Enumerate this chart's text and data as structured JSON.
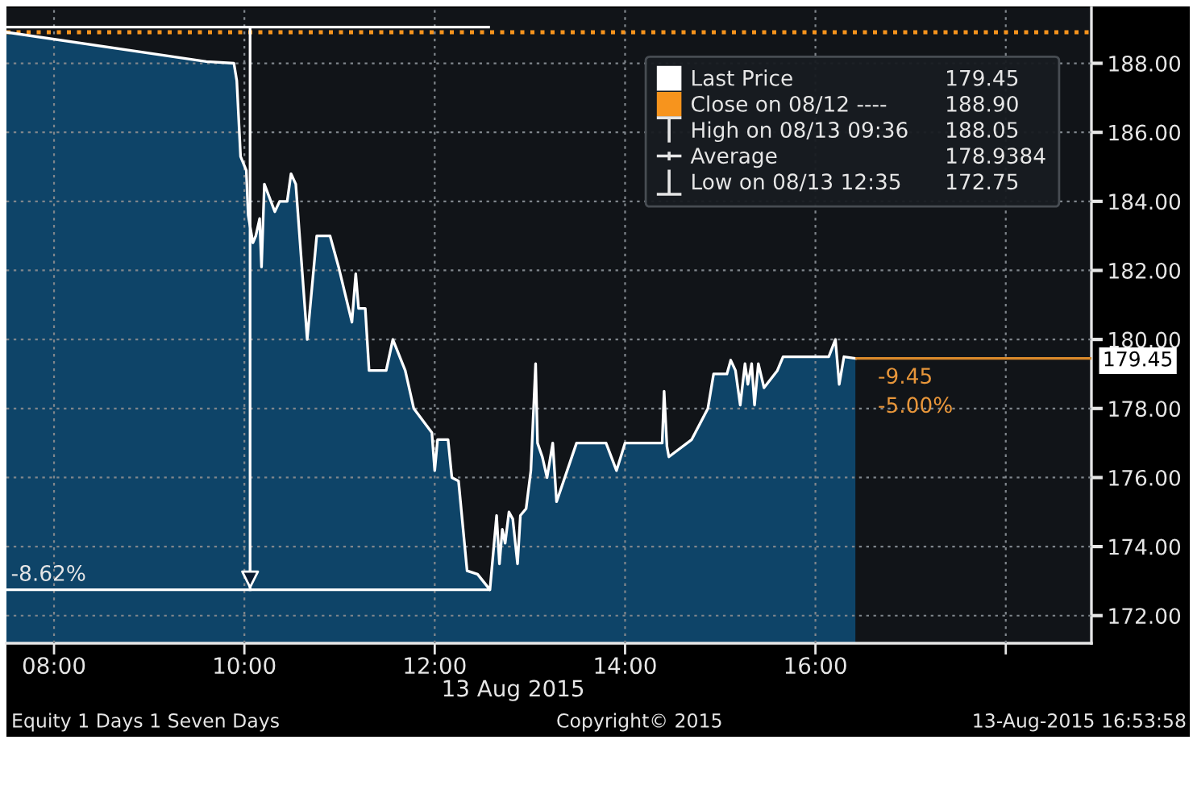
{
  "chart_data": {
    "type": "area",
    "x": [
      7.5,
      9.6,
      9.89,
      9.92,
      9.96,
      10.02,
      10.04,
      10.09,
      10.12,
      10.16,
      10.18,
      10.21,
      10.32,
      10.37,
      10.45,
      10.49,
      10.54,
      10.66,
      10.76,
      10.9,
      10.99,
      11.13,
      11.17,
      11.2,
      11.27,
      11.31,
      11.49,
      11.56,
      11.69,
      11.78,
      11.97,
      12.0,
      12.03,
      12.14,
      12.18,
      12.25,
      12.34,
      12.45,
      12.58,
      12.65,
      12.68,
      12.71,
      12.74,
      12.78,
      12.82,
      12.87,
      12.9,
      12.96,
      13.01,
      13.06,
      13.08,
      13.13,
      13.18,
      13.24,
      13.28,
      13.49,
      13.8,
      13.91,
      14.0,
      14.39,
      14.41,
      14.44,
      14.46,
      14.7,
      14.87,
      14.93,
      15.07,
      15.11,
      15.16,
      15.21,
      15.26,
      15.29,
      15.33,
      15.36,
      15.4,
      15.46,
      15.6,
      15.66,
      16.14,
      16.21,
      16.25,
      16.3,
      16.42
    ],
    "series": [
      {
        "name": "Last Price",
        "color": "#ffffff",
        "values": [
          188.9,
          188.05,
          188.0,
          187.5,
          185.3,
          184.9,
          183.6,
          182.8,
          183.0,
          183.5,
          182.1,
          184.5,
          183.7,
          184.0,
          184.0,
          184.8,
          184.5,
          180.0,
          183.0,
          183.0,
          182.1,
          180.5,
          181.9,
          180.9,
          180.9,
          179.1,
          179.1,
          180.0,
          179.1,
          178.0,
          177.3,
          176.2,
          177.1,
          177.1,
          176.0,
          175.9,
          173.3,
          173.2,
          172.75,
          174.9,
          173.5,
          174.5,
          174.1,
          175.0,
          174.8,
          173.5,
          174.9,
          175.1,
          176.2,
          179.3,
          177.0,
          176.6,
          176.0,
          177.0,
          175.3,
          177.0,
          177.0,
          176.2,
          177.0,
          177.0,
          178.5,
          176.9,
          176.6,
          177.1,
          178.0,
          179.0,
          179.0,
          179.4,
          179.1,
          178.1,
          179.3,
          178.7,
          179.3,
          178.1,
          179.3,
          178.6,
          179.1,
          179.5,
          179.5,
          180.0,
          178.7,
          179.5,
          179.45
        ]
      },
      {
        "type": "line",
        "color": "#ffffff",
        "x": [
          7.5,
          12.58
        ],
        "values": [
          189.05,
          189.05
        ]
      },
      {
        "type": "line",
        "color": "#ffffff",
        "x": [
          7.5,
          12.58
        ],
        "values": [
          172.75,
          172.75
        ]
      },
      {
        "type": "line",
        "color": "#d9892b",
        "x": [
          16.42,
          18.9
        ],
        "values": [
          179.45,
          179.45
        ]
      }
    ],
    "xlim": [
      7.5,
      18.9
    ],
    "xticks": [
      {
        "value": 8,
        "label": "08:00"
      },
      {
        "value": 10,
        "label": "10:00"
      },
      {
        "value": 12,
        "label": "12:00"
      },
      {
        "value": 14,
        "label": "14:00"
      },
      {
        "value": 16,
        "label": "16:00"
      },
      {
        "value": 18,
        "label": null
      }
    ],
    "xlabel": "13 Aug 2015",
    "ylim": [
      171.2,
      189.6
    ],
    "yticks": [
      {
        "value": 172,
        "label": "172.00"
      },
      {
        "value": 174,
        "label": "174.00"
      },
      {
        "value": 176,
        "label": "176.00"
      },
      {
        "value": 178,
        "label": "178.00"
      },
      {
        "value": 180,
        "label": "180.00"
      },
      {
        "value": 182,
        "label": "182.00"
      },
      {
        "value": 184,
        "label": "184.00"
      },
      {
        "value": 186,
        "label": "186.00"
      },
      {
        "value": 188,
        "label": "188.00"
      }
    ],
    "grid": true,
    "ref_lines": [
      {
        "axis": "y",
        "value": 188.9,
        "label": "Close on 08/12 ----",
        "color": "#f7941d",
        "line_style": "dotted"
      },
      {
        "axis": "x",
        "value": 10.06,
        "color": "#ffffff"
      }
    ],
    "legend": "top right",
    "annotations": [
      {
        "text": "-8.62%",
        "x": 7.5,
        "y": 172.75
      },
      {
        "text": "-9.45",
        "x": 16.42,
        "y": 179.45
      },
      {
        "text": "-5.00%",
        "x": 16.42,
        "y": 179.45
      },
      {
        "text": "179.45",
        "x": 18.9,
        "y": 179.45
      },
      "179.45",
      "188.90",
      "High on 08/13 09:36",
      "188.05",
      "Average",
      "178.9384",
      "Low on 08/13 12:35",
      "172.75",
      "Equity 1 Days 1 Seven Days",
      "Copyright© 2015",
      "13-Aug-2015 16:53:58"
    ]
  }
}
